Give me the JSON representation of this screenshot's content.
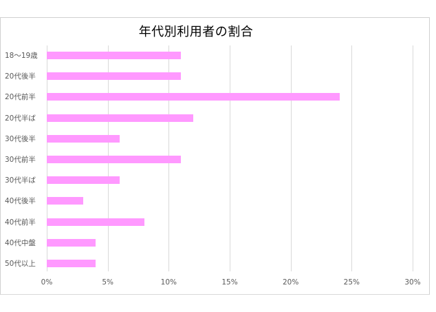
{
  "chart_data": {
    "type": "bar",
    "orientation": "horizontal",
    "title": "年代別利用者の割合",
    "xlabel": "",
    "ylabel": "",
    "categories": [
      "18〜19歳",
      "20代後半",
      "20代前半",
      "20代半ば",
      "30代後半",
      "30代前半",
      "30代半ば",
      "40代後半",
      "40代前半",
      "40代中盤",
      "50代以上"
    ],
    "values": [
      11,
      11,
      24,
      12,
      6,
      11,
      6,
      3,
      8,
      4,
      4
    ],
    "value_unit": "%",
    "xlim": [
      0,
      30
    ],
    "x_ticks": [
      "0%",
      "5%",
      "10%",
      "15%",
      "20%",
      "25%",
      "30%"
    ],
    "grid": true,
    "legend": "none",
    "bar_color": "#ff99ff"
  }
}
